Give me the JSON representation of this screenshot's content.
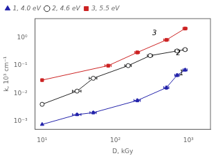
{
  "chart_data": {
    "type": "scatter",
    "x_label": "D, kGy",
    "y_label": "k, 10³ cm⁻¹",
    "log": true,
    "grid": false,
    "legend": "upper left",
    "line_style": "solid",
    "xlim": [
      8,
      2000
    ],
    "ylim": [
      0.0005,
      5.0
    ],
    "xticks": [
      {
        "value": 10,
        "label": "10¹"
      },
      {
        "value": 100,
        "label": "10²"
      },
      {
        "value": 1000,
        "label": "10³"
      }
    ],
    "yticks": [
      {
        "value": 0.001,
        "label": "10⁻³"
      },
      {
        "value": 0.01,
        "label": "10⁻²"
      },
      {
        "value": 0.1,
        "label": "10⁻¹"
      },
      {
        "value": 1,
        "label": "10⁰"
      }
    ],
    "series": [
      {
        "name": "1, 4.0 eV",
        "color": "#2222aa",
        "marker": "triangle",
        "x": [
          10,
          30,
          50,
          200,
          500,
          700,
          900
        ],
        "values": [
          0.00075,
          0.0017,
          0.002,
          0.0055,
          0.016,
          0.045,
          0.07
        ],
        "xerr": [
          0,
          4,
          5,
          20,
          40,
          50,
          60
        ],
        "yerr": [
          0,
          0.00015,
          0.0002,
          0.0006,
          0.002,
          0.005,
          0.007
        ]
      },
      {
        "name": "2, 4.6 eV",
        "color": "#222222",
        "marker": "open_circle",
        "x": [
          10,
          30,
          50,
          150,
          300,
          700,
          900
        ],
        "values": [
          0.004,
          0.012,
          0.035,
          0.1,
          0.23,
          0.34,
          0.38
        ],
        "xerr": [
          0,
          4,
          6,
          15,
          25,
          50,
          60
        ],
        "yerr": [
          0,
          0.001,
          0.004,
          0.01,
          0.025,
          0.035,
          0.04
        ]
      },
      {
        "name": "3, 5.5 eV",
        "color": "#cc2222",
        "marker": "square",
        "x": [
          10,
          80,
          200,
          500,
          900
        ],
        "values": [
          0.03,
          0.1,
          0.3,
          0.85,
          2.2
        ],
        "xerr": [
          0,
          8,
          15,
          40,
          60
        ],
        "yerr": [
          0,
          0.01,
          0.03,
          0.08,
          0.2
        ]
      }
    ],
    "annotations": [
      {
        "text": "1",
        "x": 750,
        "y": 0.052
      },
      {
        "text": "2",
        "x": 680,
        "y": 0.27
      },
      {
        "text": "3",
        "x": 320,
        "y": 1.5
      }
    ]
  }
}
